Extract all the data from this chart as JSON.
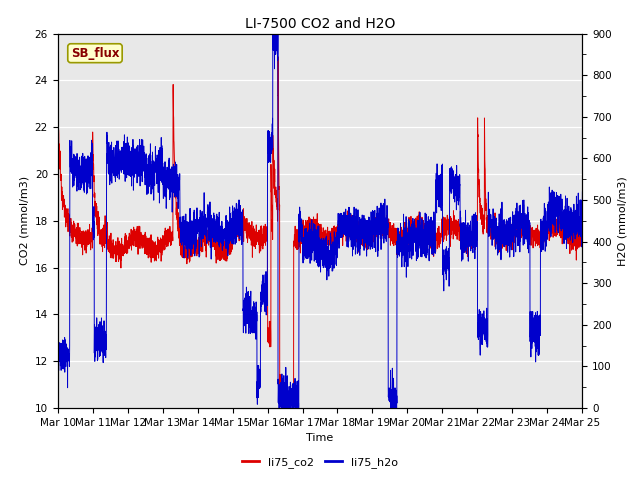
{
  "title": "LI-7500 CO2 and H2O",
  "xlabel": "Time",
  "ylabel_left": "CO2 (mmol/m3)",
  "ylabel_right": "H2O (mmol/m3)",
  "ylim_left": [
    10,
    26
  ],
  "ylim_right": [
    0,
    900
  ],
  "yticks_left": [
    10,
    12,
    14,
    16,
    18,
    20,
    22,
    24,
    26
  ],
  "yticks_right": [
    0,
    100,
    200,
    300,
    400,
    500,
    600,
    700,
    800,
    900
  ],
  "xtick_labels": [
    "Mar 10",
    "Mar 11",
    "Mar 12",
    "Mar 13",
    "Mar 14",
    "Mar 15",
    "Mar 16",
    "Mar 17",
    "Mar 18",
    "Mar 19",
    "Mar 20",
    "Mar 21",
    "Mar 22",
    "Mar 23",
    "Mar 24",
    "Mar 25"
  ],
  "color_co2": "#dd0000",
  "color_h2o": "#0000cc",
  "legend_label_co2": "li75_co2",
  "legend_label_h2o": "li75_h2o",
  "annotation_text": "SB_flux",
  "annotation_bg": "#ffffcc",
  "annotation_border": "#999900",
  "background_color": "#e8e8e8",
  "title_fontsize": 10,
  "axis_fontsize": 8,
  "tick_fontsize": 7.5,
  "legend_fontsize": 8
}
